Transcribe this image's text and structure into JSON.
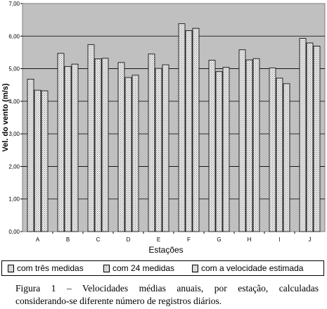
{
  "chart_data": {
    "type": "bar",
    "categories": [
      "A",
      "B",
      "C",
      "D",
      "E",
      "F",
      "G",
      "H",
      "I",
      "J"
    ],
    "series": [
      {
        "name": "com três medidas",
        "values": [
          4.68,
          5.47,
          5.74,
          5.19,
          5.45,
          6.38,
          5.26,
          5.58,
          5.02,
          5.93
        ]
      },
      {
        "name": "com 24 medidas",
        "values": [
          4.34,
          5.07,
          5.3,
          4.73,
          5.01,
          6.17,
          4.91,
          5.27,
          4.71,
          5.79
        ]
      },
      {
        "name": "com a velocidade estimada",
        "values": [
          4.32,
          5.14,
          5.32,
          4.8,
          5.12,
          6.24,
          5.04,
          5.31,
          4.54,
          5.69
        ]
      }
    ],
    "ylabel": "Vel. do vento (m/s)",
    "xlabel": "Estações",
    "ylim": [
      0,
      7
    ],
    "yticks": [
      "0,00",
      "1,00",
      "2,00",
      "3,00",
      "4,00",
      "5,00",
      "6,00",
      "7,00"
    ],
    "grid": true,
    "legend_position": "bottom",
    "colors": {
      "plot_bg": "#c0c0c0",
      "bar_fill": "#ececec",
      "bar_hatch": "#8c8c8c",
      "outline": "#000000"
    }
  },
  "caption": {
    "line1": "Figura 1 – Velocidades médias anuais, por estação, calculadas",
    "line2": "considerando-se diferente número de registros diários."
  }
}
